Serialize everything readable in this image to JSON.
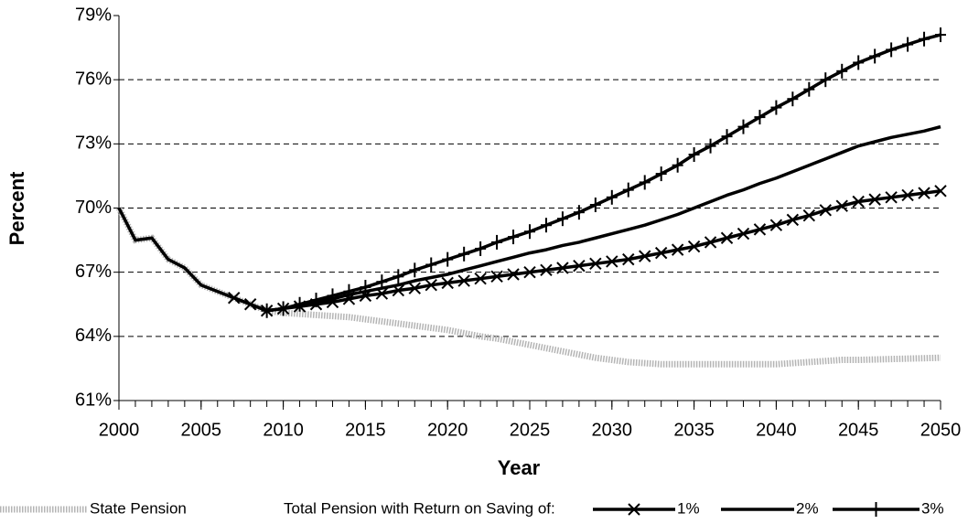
{
  "chart_data": {
    "type": "line",
    "xlabel": "Year",
    "ylabel": "Percent",
    "legend_title": "Total Pension with Return on Saving of:",
    "legend": "bottom",
    "grid": true,
    "x": [
      2000,
      2001,
      2002,
      2003,
      2004,
      2005,
      2006,
      2007,
      2008,
      2009,
      2010,
      2011,
      2012,
      2013,
      2014,
      2015,
      2016,
      2017,
      2018,
      2019,
      2020,
      2021,
      2022,
      2023,
      2024,
      2025,
      2026,
      2027,
      2028,
      2029,
      2030,
      2031,
      2032,
      2033,
      2034,
      2035,
      2036,
      2037,
      2038,
      2039,
      2040,
      2041,
      2042,
      2043,
      2044,
      2045,
      2046,
      2047,
      2048,
      2049,
      2050
    ],
    "xlim": [
      2000,
      2050
    ],
    "xticks": [
      2000,
      2005,
      2010,
      2015,
      2020,
      2025,
      2030,
      2035,
      2040,
      2045,
      2050
    ],
    "ylim": [
      61,
      79
    ],
    "yticks": [
      {
        "value": 61,
        "label": "61%"
      },
      {
        "value": 64,
        "label": "64%"
      },
      {
        "value": 67,
        "label": "67%"
      },
      {
        "value": 70,
        "label": "70%"
      },
      {
        "value": 73,
        "label": "73%"
      },
      {
        "value": 76,
        "label": "76%"
      },
      {
        "value": 79,
        "label": "79%"
      }
    ],
    "series": [
      {
        "name": "State Pension",
        "color": "#b4b4b4",
        "style": "dotted",
        "marker": null,
        "values": [
          70,
          68.5,
          68.6,
          67.6,
          67.2,
          66.4,
          66.1,
          65.8,
          65.5,
          65.2,
          65.1,
          65.05,
          65.0,
          64.95,
          64.9,
          64.8,
          64.7,
          64.6,
          64.5,
          64.4,
          64.3,
          64.15,
          64.0,
          63.9,
          63.75,
          63.6,
          63.45,
          63.3,
          63.15,
          63.0,
          62.9,
          62.8,
          62.75,
          62.7,
          62.7,
          62.7,
          62.7,
          62.7,
          62.7,
          62.7,
          62.7,
          62.75,
          62.8,
          62.85,
          62.9,
          62.9,
          62.92,
          62.94,
          62.96,
          62.98,
          63.0
        ]
      },
      {
        "name": "1%",
        "color": "#000000",
        "style": "solid",
        "marker": "x",
        "values": [
          null,
          null,
          null,
          null,
          null,
          null,
          null,
          65.8,
          65.5,
          65.2,
          65.3,
          65.4,
          65.5,
          65.6,
          65.75,
          65.9,
          66.0,
          66.15,
          66.25,
          66.4,
          66.5,
          66.6,
          66.7,
          66.8,
          66.9,
          67.0,
          67.1,
          67.2,
          67.3,
          67.4,
          67.5,
          67.6,
          67.75,
          67.9,
          68.05,
          68.2,
          68.4,
          68.6,
          68.8,
          69.0,
          69.2,
          69.45,
          69.65,
          69.9,
          70.1,
          70.3,
          70.4,
          70.5,
          70.6,
          70.7,
          70.8
        ]
      },
      {
        "name": "2%",
        "color": "#000000",
        "style": "solid",
        "marker": null,
        "values": [
          70,
          68.5,
          68.6,
          67.6,
          67.2,
          66.4,
          66.1,
          65.8,
          65.5,
          65.2,
          65.3,
          65.45,
          65.6,
          65.75,
          65.95,
          66.1,
          66.25,
          66.4,
          66.6,
          66.75,
          66.9,
          67.1,
          67.3,
          67.5,
          67.7,
          67.9,
          68.05,
          68.25,
          68.4,
          68.6,
          68.8,
          69.0,
          69.2,
          69.45,
          69.7,
          70.0,
          70.3,
          70.6,
          70.85,
          71.15,
          71.4,
          71.7,
          72.0,
          72.3,
          72.6,
          72.9,
          73.1,
          73.3,
          73.45,
          73.6,
          73.8
        ]
      },
      {
        "name": "3%",
        "color": "#000000",
        "style": "solid",
        "marker": "+",
        "values": [
          null,
          null,
          null,
          null,
          null,
          null,
          null,
          null,
          null,
          65.2,
          65.3,
          65.5,
          65.7,
          65.9,
          66.1,
          66.3,
          66.55,
          66.8,
          67.1,
          67.35,
          67.6,
          67.85,
          68.1,
          68.4,
          68.65,
          68.9,
          69.2,
          69.5,
          69.8,
          70.15,
          70.5,
          70.85,
          71.2,
          71.6,
          72.0,
          72.5,
          72.9,
          73.35,
          73.8,
          74.25,
          74.7,
          75.1,
          75.55,
          76.0,
          76.4,
          76.8,
          77.1,
          77.4,
          77.65,
          77.9,
          78.1
        ]
      }
    ]
  }
}
